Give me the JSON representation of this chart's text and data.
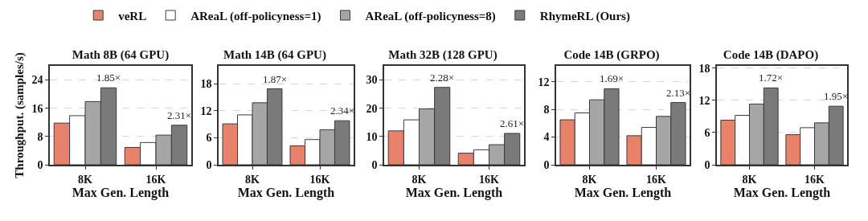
{
  "chart_data": [
    {
      "type": "bar",
      "title": "Math 8B (64 GPU)",
      "xlabel": "Max Gen. Length",
      "ylabel": "Throughput. (samples/s)",
      "categories": [
        "8K",
        "16K"
      ],
      "ylim": [
        0,
        28
      ],
      "yticks": [
        0,
        8,
        16,
        24
      ],
      "grid": "y",
      "legend": "top",
      "series": [
        {
          "name": "veRL",
          "color": "#e8826a",
          "values": [
            11.8,
            4.9
          ]
        },
        {
          "name": "AReaL (off-policyness=1)",
          "color": "#ffffff",
          "values": [
            13.9,
            6.3
          ]
        },
        {
          "name": "AReaL (off-policyness=8)",
          "color": "#a6a6a6",
          "values": [
            17.9,
            8.4
          ]
        },
        {
          "name": "RhymeRL (Ours)",
          "color": "#7a7a7a",
          "values": [
            21.8,
            11.2
          ]
        }
      ],
      "annotations": [
        "1.85×",
        "2.31×"
      ]
    },
    {
      "type": "bar",
      "title": "Math 14B (64 GPU)",
      "xlabel": "Max Gen. Length",
      "categories": [
        "8K",
        "16K"
      ],
      "ylim": [
        0,
        22
      ],
      "yticks": [
        0,
        6,
        12,
        18
      ],
      "grid": "y",
      "series": [
        {
          "color": "#e8826a",
          "values": [
            9.1,
            4.2
          ]
        },
        {
          "color": "#ffffff",
          "values": [
            11.1,
            5.6
          ]
        },
        {
          "color": "#a6a6a6",
          "values": [
            13.8,
            7.8
          ]
        },
        {
          "color": "#7a7a7a",
          "values": [
            16.9,
            9.8
          ]
        }
      ],
      "annotations": [
        "1.87×",
        "2.34×"
      ]
    },
    {
      "type": "bar",
      "title": "Math 32B (128 GPU)",
      "xlabel": "Max Gen. Length",
      "categories": [
        "8K",
        "16K"
      ],
      "ylim": [
        0,
        35
      ],
      "yticks": [
        0,
        10,
        20,
        30
      ],
      "grid": "y",
      "series": [
        {
          "color": "#e8826a",
          "values": [
            12.0,
            4.1
          ]
        },
        {
          "color": "#ffffff",
          "values": [
            15.9,
            5.3
          ]
        },
        {
          "color": "#a6a6a6",
          "values": [
            19.8,
            7.1
          ]
        },
        {
          "color": "#7a7a7a",
          "values": [
            27.4,
            11.1
          ]
        }
      ],
      "annotations": [
        "2.28×",
        "2.61×"
      ]
    },
    {
      "type": "bar",
      "title": "Code 14B (GRPO)",
      "xlabel": "Max Gen. Length",
      "categories": [
        "8K",
        "16K"
      ],
      "ylim": [
        0,
        14.3
      ],
      "yticks": [
        0,
        4,
        8,
        12
      ],
      "grid": "y",
      "series": [
        {
          "color": "#e8826a",
          "values": [
            6.5,
            4.2
          ]
        },
        {
          "color": "#ffffff",
          "values": [
            7.5,
            5.4
          ]
        },
        {
          "color": "#a6a6a6",
          "values": [
            9.4,
            7.0
          ]
        },
        {
          "color": "#7a7a7a",
          "values": [
            11.0,
            9.0
          ]
        }
      ],
      "annotations": [
        "1.69×",
        "2.13×"
      ]
    },
    {
      "type": "bar",
      "title": "Code 14B (DAPO)",
      "xlabel": "Max Gen. Length",
      "categories": [
        "8K",
        "16K"
      ],
      "ylim": [
        0,
        18.4
      ],
      "yticks": [
        0,
        6,
        12,
        18
      ],
      "grid": "y",
      "series": [
        {
          "color": "#e8826a",
          "values": [
            8.3,
            5.6
          ]
        },
        {
          "color": "#ffffff",
          "values": [
            9.2,
            6.9
          ]
        },
        {
          "color": "#a6a6a6",
          "values": [
            11.3,
            7.8
          ]
        },
        {
          "color": "#7a7a7a",
          "values": [
            14.3,
            10.9
          ]
        }
      ],
      "annotations": [
        "1.72×",
        "1.95×"
      ]
    }
  ]
}
